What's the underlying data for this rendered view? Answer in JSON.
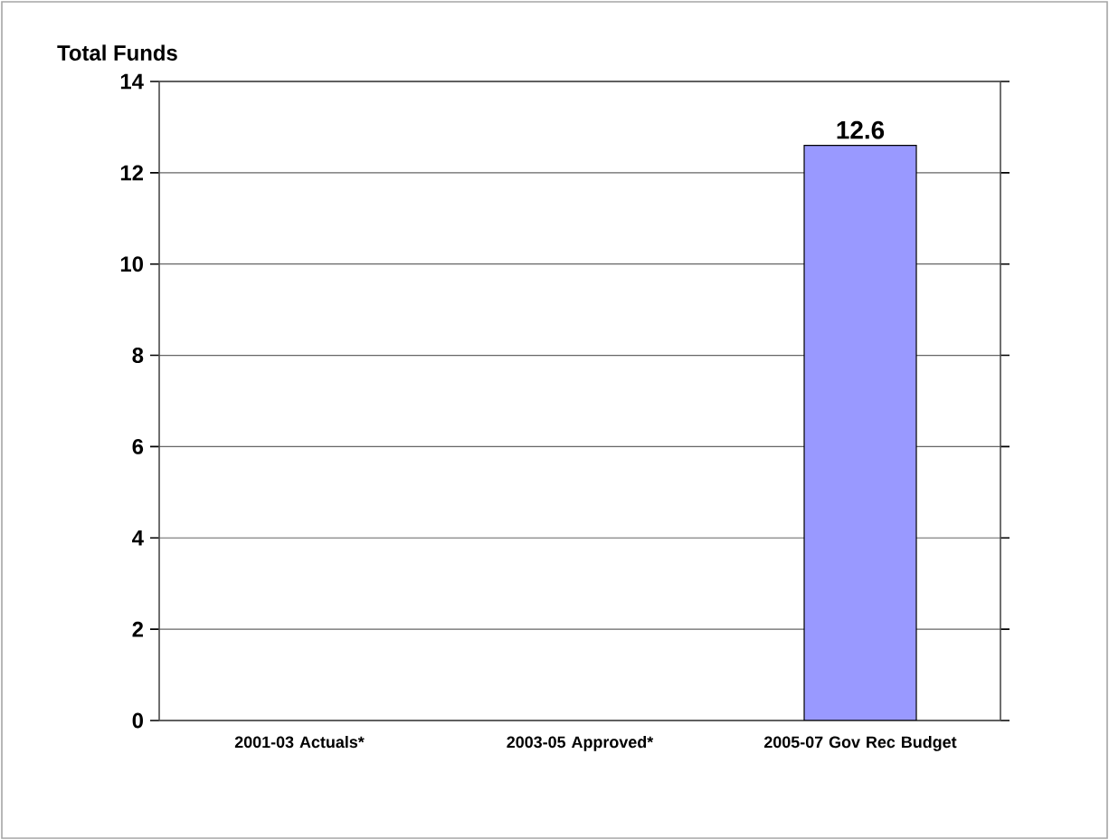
{
  "chart_data": {
    "type": "bar",
    "ylabel": "Total Funds",
    "categories": [
      "2001-03 Actuals*",
      "2003-05 Approved*",
      "2005-07 Gov Rec Budget"
    ],
    "values": [
      null,
      null,
      12.6
    ],
    "value_labels": [
      null,
      null,
      "12.6"
    ],
    "color": "#9999ff",
    "ylim": [
      0,
      14
    ],
    "yticks": [
      0,
      2,
      4,
      6,
      8,
      10,
      12,
      14
    ],
    "grid": "y"
  }
}
